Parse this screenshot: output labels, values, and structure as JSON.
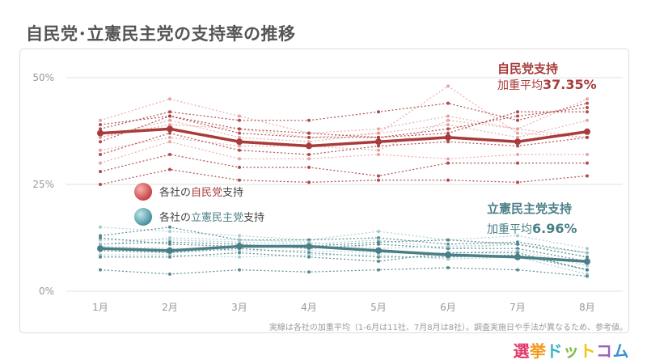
{
  "title": "自民党･立憲民主党の支持率の推移",
  "note": "実線は各社の加重平均（1-6月は11社、7月8月は8社）。調査実施日や手法が異なるため、参考値。",
  "logo": {
    "parts": [
      {
        "text": "選",
        "color": "#e4376b"
      },
      {
        "text": "挙",
        "color": "#f39a1e"
      },
      {
        "text": "ド",
        "color": "#38b3c5"
      },
      {
        "text": "ッ",
        "color": "#7dbb41"
      },
      {
        "text": "ト",
        "color": "#f2c21b"
      },
      {
        "text": "コ",
        "color": "#9a62b8"
      },
      {
        "text": "ム",
        "color": "#3b8fd1"
      }
    ]
  },
  "colors": {
    "ldp": "#a83b3b",
    "ldp_light": "#e39a9a",
    "cdp": "#4a7f86",
    "cdp_light": "#9cc6cc",
    "grid": "#e2e2e2"
  },
  "chart_data": {
    "type": "line",
    "categories": [
      "1月",
      "2月",
      "3月",
      "4月",
      "5月",
      "6月",
      "7月",
      "8月"
    ],
    "ylim": [
      0,
      50
    ],
    "yticks": [
      0,
      25,
      50
    ],
    "ytick_labels": [
      "0%",
      "25%",
      "50%"
    ],
    "grid": true,
    "legend": [
      {
        "prefix": "各社の",
        "party": "自民党",
        "suffix": "支持",
        "series": "ldp"
      },
      {
        "prefix": "各社の",
        "party": "立憲民主党",
        "suffix": "支持",
        "series": "cdp"
      }
    ],
    "annotations": {
      "ldp": {
        "title": "自民党支持",
        "avg_label": "加重平均",
        "avg_value": "37.35%"
      },
      "cdp": {
        "title": "立憲民主党支持",
        "avg_label": "加重平均",
        "avg_value": "6.96%"
      }
    },
    "series": [
      {
        "name": "自民党",
        "group": "ldp",
        "role": "average",
        "values": [
          37.0,
          38.0,
          35.0,
          34.0,
          35.0,
          36.0,
          35.0,
          37.35
        ]
      },
      {
        "group": "ldp",
        "role": "poll",
        "shade": 1,
        "values": [
          40.0,
          45.0,
          41.0,
          37.0,
          38.0,
          41.0,
          38.0,
          45.0
        ]
      },
      {
        "group": "ldp",
        "role": "poll",
        "shade": 0,
        "values": [
          38.0,
          42.0,
          40.0,
          40.0,
          42.0,
          44.0,
          40.0,
          44.0
        ]
      },
      {
        "group": "ldp",
        "role": "poll",
        "shade": 1,
        "values": [
          36.0,
          39.0,
          38.0,
          36.0,
          37.0,
          48.0,
          37.0,
          36.0
        ]
      },
      {
        "group": "ldp",
        "role": "poll",
        "shade": 0,
        "values": [
          35.0,
          41.0,
          37.0,
          36.0,
          36.0,
          38.0,
          41.0,
          43.0
        ]
      },
      {
        "group": "ldp",
        "role": "poll",
        "shade": 1,
        "values": [
          33.0,
          36.0,
          34.0,
          34.0,
          33.0,
          40.0,
          38.0,
          36.0
        ]
      },
      {
        "group": "ldp",
        "role": "poll",
        "shade": 0,
        "values": [
          32.0,
          37.0,
          33.0,
          32.0,
          34.0,
          35.0,
          34.0,
          36.0
        ]
      },
      {
        "group": "ldp",
        "role": "poll",
        "shade": 1,
        "values": [
          30.0,
          35.0,
          31.0,
          31.0,
          32.0,
          31.0,
          32.0,
          32.0
        ]
      },
      {
        "group": "ldp",
        "role": "poll",
        "shade": 0,
        "values": [
          28.0,
          32.0,
          29.0,
          29.0,
          27.0,
          30.0,
          30.0,
          30.0
        ]
      },
      {
        "group": "ldp",
        "role": "poll",
        "shade": 1,
        "values": [
          36.0,
          40.0,
          36.0,
          35.0,
          37.0,
          39.0,
          36.0,
          40.0
        ]
      },
      {
        "group": "ldp",
        "role": "poll",
        "shade": 0,
        "values": [
          39.0,
          41.0,
          38.0,
          37.0,
          36.0,
          37.0,
          42.0,
          42.0
        ]
      },
      {
        "group": "ldp",
        "role": "poll",
        "shade": 0,
        "values": [
          25.0,
          28.5,
          26.0,
          25.5,
          26.0,
          26.0,
          25.5,
          27.0
        ]
      },
      {
        "name": "立憲民主党",
        "group": "cdp",
        "role": "average",
        "values": [
          10.0,
          9.5,
          10.5,
          10.5,
          9.5,
          8.5,
          8.0,
          6.96
        ]
      },
      {
        "group": "cdp",
        "role": "poll",
        "shade": 1,
        "values": [
          15.0,
          14.0,
          13.0,
          12.0,
          14.0,
          12.0,
          13.0,
          10.0
        ]
      },
      {
        "group": "cdp",
        "role": "poll",
        "shade": 0,
        "values": [
          13.0,
          15.0,
          12.0,
          12.0,
          12.5,
          11.0,
          11.5,
          9.0
        ]
      },
      {
        "group": "cdp",
        "role": "poll",
        "shade": 1,
        "values": [
          12.0,
          12.0,
          11.5,
          11.0,
          12.0,
          10.0,
          11.0,
          8.0
        ]
      },
      {
        "group": "cdp",
        "role": "poll",
        "shade": 0,
        "values": [
          11.0,
          11.5,
          11.0,
          10.0,
          11.0,
          10.0,
          10.0,
          7.0
        ]
      },
      {
        "group": "cdp",
        "role": "poll",
        "shade": 1,
        "values": [
          10.5,
          10.0,
          9.5,
          9.5,
          9.0,
          9.0,
          9.5,
          6.0
        ]
      },
      {
        "group": "cdp",
        "role": "poll",
        "shade": 0,
        "values": [
          9.5,
          9.0,
          10.0,
          9.0,
          8.0,
          8.0,
          8.5,
          5.0
        ]
      },
      {
        "group": "cdp",
        "role": "poll",
        "shade": 1,
        "values": [
          8.5,
          8.5,
          8.0,
          8.5,
          8.5,
          7.5,
          8.0,
          4.0
        ]
      },
      {
        "group": "cdp",
        "role": "poll",
        "shade": 0,
        "values": [
          8.0,
          8.0,
          9.0,
          8.0,
          7.0,
          9.0,
          9.0,
          5.0
        ]
      },
      {
        "group": "cdp",
        "role": "poll",
        "shade": 1,
        "values": [
          11.0,
          12.5,
          12.0,
          11.5,
          10.0,
          10.5,
          11.0,
          9.0
        ]
      },
      {
        "group": "cdp",
        "role": "poll",
        "shade": 0,
        "values": [
          12.5,
          11.0,
          10.5,
          10.5,
          11.5,
          12.0,
          11.0,
          8.0
        ]
      },
      {
        "group": "cdp",
        "role": "poll",
        "shade": 0,
        "values": [
          5.0,
          4.0,
          5.0,
          4.5,
          5.0,
          5.5,
          5.0,
          3.5
        ]
      }
    ]
  }
}
